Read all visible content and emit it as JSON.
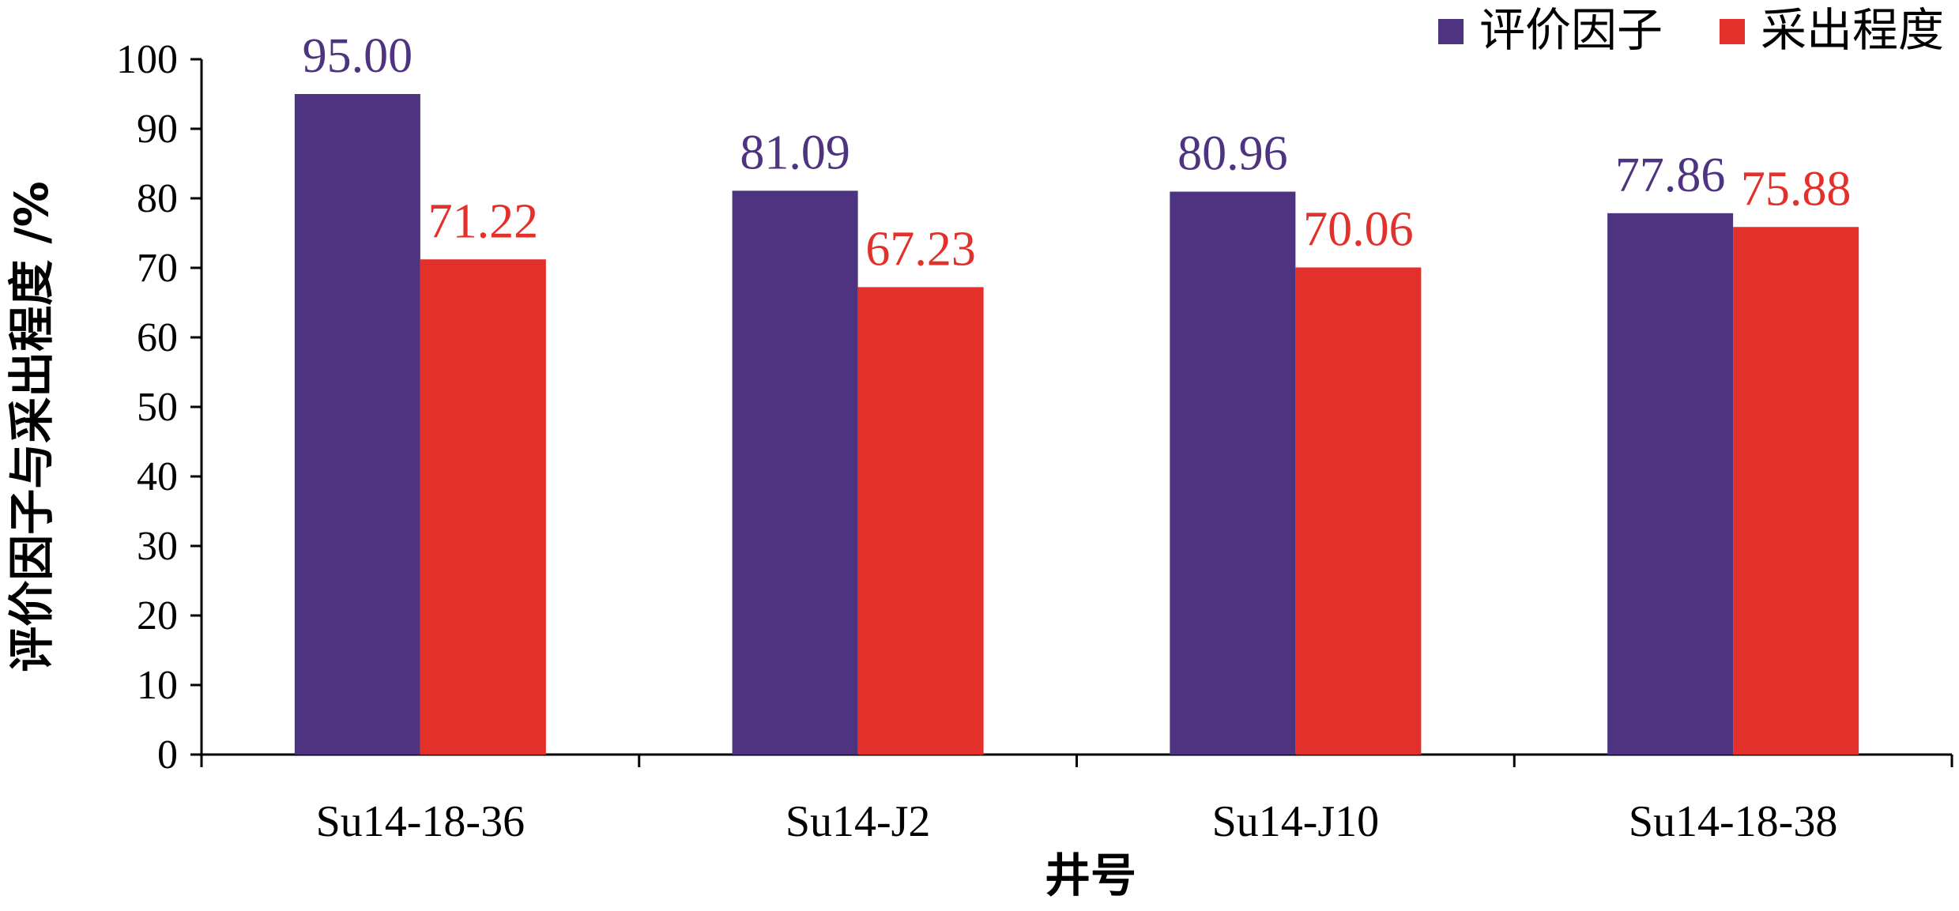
{
  "chart_data": {
    "type": "bar",
    "title": "",
    "xlabel": "井号",
    "ylabel": "评价因子与采出程度 /%",
    "categories": [
      "Su14-18-36",
      "Su14-J2",
      "Su14-J10",
      "Su14-18-38"
    ],
    "series": [
      {
        "name": "评价因子",
        "color": "#4E3381",
        "values": [
          95.0,
          81.09,
          80.96,
          77.86
        ],
        "labels": [
          "95.00",
          "81.09",
          "80.96",
          "77.86"
        ]
      },
      {
        "name": "采出程度",
        "color": "#E3302A",
        "values": [
          71.22,
          67.23,
          70.06,
          75.88
        ],
        "labels": [
          "71.22",
          "67.23",
          "70.06",
          "75.88"
        ]
      }
    ],
    "ylim": [
      0,
      100
    ],
    "yticks": [
      "0",
      "10",
      "20",
      "30",
      "40",
      "50",
      "60",
      "70",
      "80",
      "90",
      "100"
    ],
    "grid": false,
    "legend_position": "top-right"
  }
}
